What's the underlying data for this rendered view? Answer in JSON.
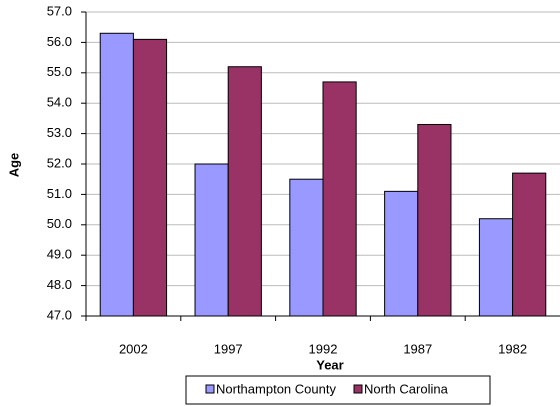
{
  "chart_data": {
    "type": "bar",
    "x_label": "Year",
    "y_label": "Age",
    "categories": [
      "2002",
      "1997",
      "1992",
      "1987",
      "1982"
    ],
    "series": [
      {
        "name": "Northampton County",
        "color": "#9999ff",
        "values": [
          56.3,
          52.0,
          51.5,
          51.1,
          50.2
        ]
      },
      {
        "name": "North Carolina",
        "color": "#993366",
        "values": [
          56.1,
          55.2,
          54.7,
          53.3,
          51.7
        ]
      }
    ],
    "ylim": [
      47,
      57
    ],
    "yticks": [
      {
        "value": 47,
        "label": "47.0"
      },
      {
        "value": 48,
        "label": "48.0"
      },
      {
        "value": 49,
        "label": "49.0"
      },
      {
        "value": 50,
        "label": "50.0"
      },
      {
        "value": 51,
        "label": "51.0"
      },
      {
        "value": 52,
        "label": "52.0"
      },
      {
        "value": 53,
        "label": "53.0"
      },
      {
        "value": 54,
        "label": "54.0"
      },
      {
        "value": 55,
        "label": "55.0"
      },
      {
        "value": 56,
        "label": "56.0"
      },
      {
        "value": 57,
        "label": "57.0"
      }
    ],
    "grid": true,
    "legend": "bottom"
  }
}
